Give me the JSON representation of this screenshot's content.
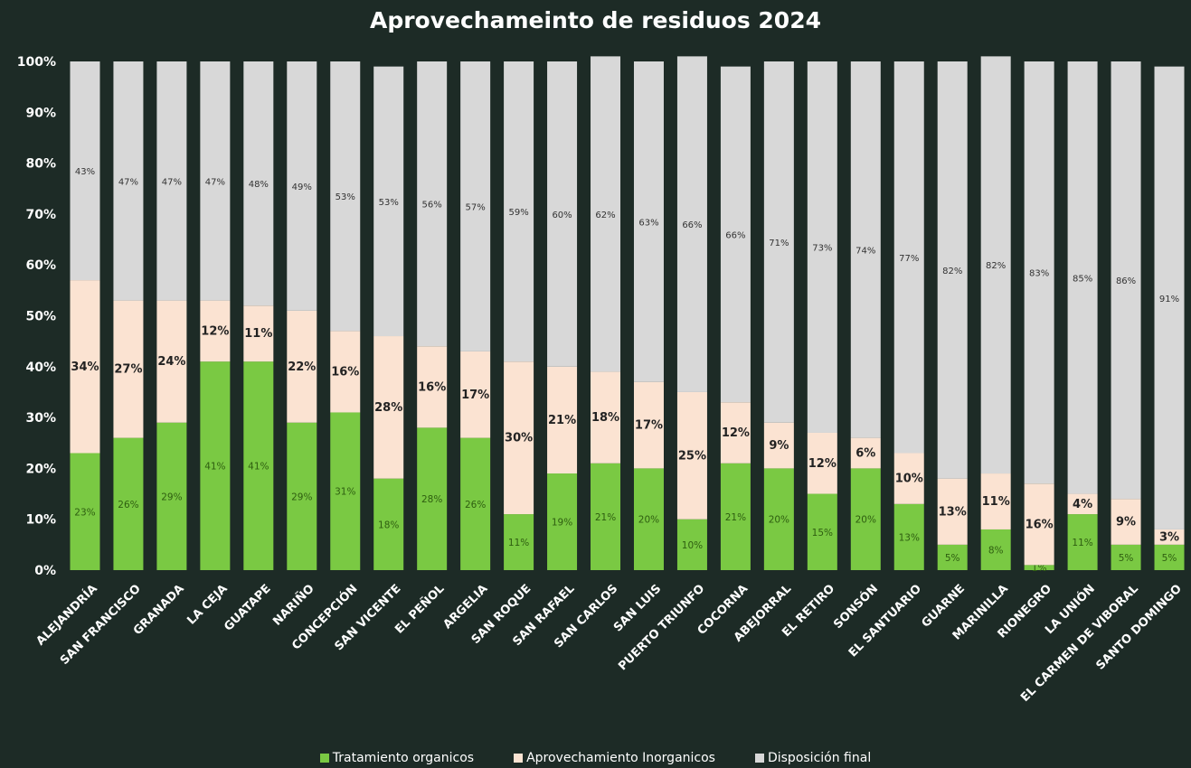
{
  "chart_data": {
    "type": "bar",
    "stacked": true,
    "title": "Aprovechameinto de residuos 2024",
    "ylim": [
      0,
      100
    ],
    "yticks": [
      "0%",
      "10%",
      "20%",
      "30%",
      "40%",
      "50%",
      "60%",
      "70%",
      "80%",
      "90%",
      "100%"
    ],
    "grid": false,
    "legend_position": "bottom",
    "categories": [
      "ALEJANDRÍA",
      "SAN FRANCISCO",
      "GRANADA",
      "LA CEJA",
      "GUATAPE",
      "NARIÑO",
      "CONCEPCIÓN",
      "SAN VICENTE",
      "EL PEÑOL",
      "ARGELIA",
      "SAN ROQUE",
      "SAN RAFAEL",
      "SAN CARLOS",
      "SAN LUIS",
      "PUERTO TRIUNFO",
      "COCORNA",
      "ABEJORRAL",
      "EL RETIRO",
      "SONSÓN",
      "EL SANTUARIO",
      "GUARNE",
      "MARINILLA",
      "RIONEGRO",
      "LA UNIÓN",
      "EL CARMEN DE VIBORAL",
      "SANTO DOMINGO"
    ],
    "series": [
      {
        "name": "Tratamiento organicos",
        "color": "#7ac943",
        "values": [
          23,
          26,
          29,
          41,
          41,
          29,
          31,
          18,
          28,
          26,
          11,
          19,
          21,
          20,
          10,
          21,
          20,
          15,
          20,
          13,
          5,
          8,
          1,
          11,
          5,
          5
        ],
        "labels": [
          "23%",
          "26%",
          "29%",
          "41%",
          "41%",
          "29%",
          "31%",
          "18%",
          "28%",
          "26%",
          "11%",
          "19%",
          "21%",
          "20%",
          "10%",
          "21%",
          "20%",
          "15%",
          "20%",
          "13%",
          "5%",
          "8%",
          "1%",
          "11%",
          "5%",
          "5%"
        ]
      },
      {
        "name": "Aprovechamiento Inorganicos",
        "color": "#fbe3d2",
        "values": [
          34,
          27,
          24,
          12,
          11,
          22,
          16,
          28,
          16,
          17,
          30,
          21,
          18,
          17,
          25,
          12,
          9,
          12,
          6,
          10,
          13,
          11,
          16,
          4,
          9,
          3
        ],
        "labels": [
          "34%",
          "27%",
          "24%",
          "12%",
          "11%",
          "22%",
          "16%",
          "28%",
          "16%",
          "17%",
          "30%",
          "21%",
          "18%",
          "17%",
          "25%",
          "12%",
          "9%",
          "12%",
          "6%",
          "10%",
          "13%",
          "11%",
          "16%",
          "4%",
          "9%",
          "3%"
        ]
      },
      {
        "name": "Disposición final",
        "color": "#d8d8d8",
        "values": [
          43,
          47,
          47,
          47,
          48,
          49,
          53,
          53,
          56,
          57,
          59,
          60,
          62,
          63,
          66,
          66,
          71,
          73,
          74,
          77,
          82,
          82,
          83,
          85,
          86,
          91
        ],
        "labels": [
          "43%",
          "47%",
          "47%",
          "47%",
          "48%",
          "49%",
          "53%",
          "53%",
          "56%",
          "57%",
          "59%",
          "60%",
          "62%",
          "63%",
          "66%",
          "66%",
          "71%",
          "73%",
          "74%",
          "77%",
          "82%",
          "82%",
          "83%",
          "85%",
          "86%",
          "91%"
        ]
      }
    ]
  }
}
